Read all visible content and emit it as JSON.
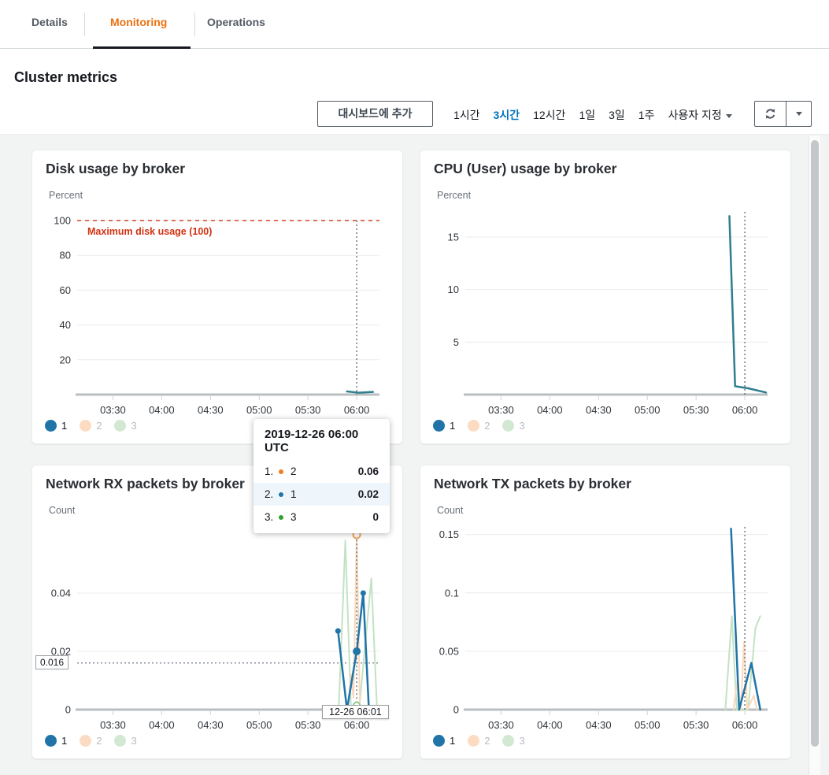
{
  "tabs": {
    "items": [
      {
        "label": "Details",
        "active": false
      },
      {
        "label": "Monitoring",
        "active": true
      },
      {
        "label": "Operations",
        "active": false
      }
    ]
  },
  "page": {
    "title": "Cluster metrics"
  },
  "toolbar": {
    "add_button": "대시보드에 추가",
    "ranges": [
      {
        "label": "1시간",
        "active": false
      },
      {
        "label": "3시간",
        "active": true
      },
      {
        "label": "12시간",
        "active": false
      },
      {
        "label": "1일",
        "active": false
      },
      {
        "label": "3일",
        "active": false
      },
      {
        "label": "1주",
        "active": false
      },
      {
        "label": "사용자 지정",
        "active": false,
        "dropdown": true
      }
    ],
    "refresh_icon": "refresh-icon",
    "refresh_dropdown_icon": "chevron-down-icon"
  },
  "colors": {
    "accent_orange": "#ec7211",
    "link_blue": "#0073bb",
    "alarm_red": "#d13212",
    "series_blue": "#2074a8",
    "series_teal": "#2e7e8f",
    "series_orange_dim": "#f8d9bd",
    "series_green_dim": "#c3e2c3",
    "content_bg": "#f2f3f3"
  },
  "tooltip": {
    "title": "2019-12-26 06:00 UTC",
    "rows": [
      {
        "rank": "1.",
        "label": "2",
        "value": "0.06",
        "color": "#ef7e1a",
        "filled": false,
        "highlight": false
      },
      {
        "rank": "2.",
        "label": "1",
        "value": "0.02",
        "color": "#2074a8",
        "filled": true,
        "highlight": true
      },
      {
        "rank": "3.",
        "label": "3",
        "value": "0",
        "color": "#2fa12f",
        "filled": false,
        "highlight": false
      }
    ]
  },
  "cursor_tooltip": "12-26 06:01",
  "chart_data": [
    {
      "type": "line",
      "title": "Disk usage by broker",
      "ylabel": "Percent",
      "ylim": [
        0,
        105
      ],
      "x_domain": [
        188,
        374
      ],
      "xticks": [
        {
          "t": 210,
          "label": "03:30"
        },
        {
          "t": 240,
          "label": "04:00"
        },
        {
          "t": 270,
          "label": "04:30"
        },
        {
          "t": 300,
          "label": "05:00"
        },
        {
          "t": 330,
          "label": "05:30"
        },
        {
          "t": 360,
          "label": "06:00"
        }
      ],
      "yticks": [
        {
          "value": 20,
          "label": "20"
        },
        {
          "value": 40,
          "label": "40"
        },
        {
          "value": 60,
          "label": "60"
        },
        {
          "value": 80,
          "label": "80"
        },
        {
          "value": 100,
          "label": "100"
        }
      ],
      "hlines": [
        {
          "value": 100,
          "color": "#d13212",
          "dash": "5,5",
          "width": 1.3,
          "label": "Maximum disk usage (100)"
        }
      ],
      "cursor": {
        "t": 360,
        "y_top": 100
      },
      "series": [
        {
          "name": "1",
          "color": "#2e7e8f",
          "width": 2.5,
          "values": [
            [
              354,
              1.8
            ],
            [
              361,
              1.1
            ],
            [
              370,
              1.5
            ]
          ]
        }
      ],
      "legend": [
        {
          "label": "1",
          "color": "#2074a8",
          "text_color": "#16191f"
        },
        {
          "label": "2",
          "color": "#fbdcc3",
          "text_color": "#b7bcc1"
        },
        {
          "label": "3",
          "color": "#d2e8d2",
          "text_color": "#b7bcc1"
        }
      ]
    },
    {
      "type": "line",
      "title": "CPU (User) usage by broker",
      "ylabel": "Percent",
      "ylim": [
        0,
        17.4
      ],
      "x_domain": [
        188,
        374
      ],
      "xticks": [
        {
          "t": 210,
          "label": "03:30"
        },
        {
          "t": 240,
          "label": "04:00"
        },
        {
          "t": 270,
          "label": "04:30"
        },
        {
          "t": 300,
          "label": "05:00"
        },
        {
          "t": 330,
          "label": "05:30"
        },
        {
          "t": 360,
          "label": "06:00"
        }
      ],
      "yticks": [
        {
          "value": 5,
          "label": "5"
        },
        {
          "value": 10,
          "label": "10"
        },
        {
          "value": 15,
          "label": "15"
        }
      ],
      "cursor": {
        "t": 360
      },
      "series": [
        {
          "name": "1",
          "color": "#2e7e8f",
          "width": 2.5,
          "values": [
            [
              350.5,
              17.0
            ],
            [
              354,
              0.8
            ],
            [
              362,
              0.6
            ],
            [
              373,
              0.2
            ]
          ]
        }
      ],
      "legend": [
        {
          "label": "1",
          "color": "#2074a8",
          "text_color": "#16191f"
        },
        {
          "label": "2",
          "color": "#fbdcc3",
          "text_color": "#b7bcc1"
        },
        {
          "label": "3",
          "color": "#d2e8d2",
          "text_color": "#b7bcc1"
        }
      ]
    },
    {
      "type": "line",
      "title": "Network RX packets by broker",
      "ylabel": "Count",
      "ylim": [
        0,
        0.0627
      ],
      "x_domain": [
        188,
        374
      ],
      "xticks": [
        {
          "t": 210,
          "label": "03:30"
        },
        {
          "t": 240,
          "label": "04:00"
        },
        {
          "t": 270,
          "label": "04:30"
        },
        {
          "t": 300,
          "label": "05:00"
        },
        {
          "t": 330,
          "label": "05:30"
        },
        {
          "t": 360,
          "label": "06:00"
        }
      ],
      "yticks": [
        {
          "value": 0,
          "label": "0"
        },
        {
          "value": 0.02,
          "label": "0.02"
        },
        {
          "value": 0.04,
          "label": "0.04"
        }
      ],
      "hlines": [
        {
          "value": 0.016,
          "color": "#5f6b7a",
          "dash": "2,3",
          "width": 1.2
        }
      ],
      "threshold_label": "0.016",
      "cursor": {
        "t": 360,
        "y_top": 0.061
      },
      "series": [
        {
          "name": "3",
          "color": "#c3e2c3",
          "width": 2,
          "values": [
            [
              346,
              0
            ],
            [
              349,
              0.001
            ],
            [
              353,
              0.058
            ],
            [
              356.5,
              0
            ],
            [
              359.5,
              0.002
            ],
            [
              361.5,
              0
            ],
            [
              369,
              0.045
            ],
            [
              372.5,
              0
            ]
          ]
        },
        {
          "name": "2",
          "color": "#f8d9bd",
          "width": 2,
          "values": [
            [
              350,
              0
            ],
            [
              354.5,
              0
            ],
            [
              356.5,
              0.012
            ],
            [
              358,
              0.004
            ],
            [
              360,
              0.06
            ],
            [
              362,
              0
            ],
            [
              368,
              0
            ]
          ]
        },
        {
          "name": "1",
          "color": "#2074a8",
          "width": 2.5,
          "dot_radius": 3.5,
          "values": [
            [
              348.5,
              0.027
            ],
            [
              354,
              0
            ],
            [
              360,
              0.02
            ],
            [
              364,
              0.04
            ],
            [
              367.5,
              0
            ],
            [
              370,
              0
            ]
          ]
        }
      ],
      "markers": [
        {
          "t": 360,
          "v": 0.06,
          "r": 4.5,
          "color": "#efa45e",
          "filled": false
        },
        {
          "t": 360,
          "v": 0.02,
          "r": 5,
          "color": "#2074a8",
          "filled": true
        },
        {
          "t": 360,
          "v": 0.0015,
          "r": 4,
          "color": "#8fcf8f",
          "filled": false
        }
      ],
      "legend": [
        {
          "label": "1",
          "color": "#2074a8",
          "text_color": "#16191f"
        },
        {
          "label": "2",
          "color": "#fbdcc3",
          "text_color": "#b7bcc1"
        },
        {
          "label": "3",
          "color": "#d2e8d2",
          "text_color": "#b7bcc1"
        }
      ]
    },
    {
      "type": "line",
      "title": "Network TX packets by broker",
      "ylabel": "Count",
      "ylim": [
        0,
        0.1565
      ],
      "x_domain": [
        188,
        374
      ],
      "xticks": [
        {
          "t": 210,
          "label": "03:30"
        },
        {
          "t": 240,
          "label": "04:00"
        },
        {
          "t": 270,
          "label": "04:30"
        },
        {
          "t": 300,
          "label": "05:00"
        },
        {
          "t": 330,
          "label": "05:30"
        },
        {
          "t": 360,
          "label": "06:00"
        }
      ],
      "yticks": [
        {
          "value": 0,
          "label": "0"
        },
        {
          "value": 0.05,
          "label": "0.05"
        },
        {
          "value": 0.1,
          "label": "0.1"
        },
        {
          "value": 0.15,
          "label": "0.15"
        }
      ],
      "cursor": {
        "t": 360
      },
      "series": [
        {
          "name": "3",
          "color": "#c3e2c3",
          "width": 2,
          "values": [
            [
              348,
              0
            ],
            [
              352,
              0.08
            ],
            [
              355,
              0
            ],
            [
              362,
              0
            ],
            [
              366.5,
              0.07
            ],
            [
              369.5,
              0.08
            ]
          ]
        },
        {
          "name": "2",
          "color": "#f8d9bd",
          "width": 2,
          "values": [
            [
              353,
              0
            ],
            [
              355.5,
              0.027
            ],
            [
              357.5,
              0
            ],
            [
              359.5,
              0.058
            ],
            [
              361.5,
              0
            ],
            [
              365.5,
              0.012
            ],
            [
              367.5,
              0
            ]
          ]
        },
        {
          "name": "1",
          "color": "#2074a8",
          "width": 2.5,
          "values": [
            [
              351.5,
              0.155
            ],
            [
              356.5,
              0
            ],
            [
              364,
              0.04
            ],
            [
              369.5,
              0
            ]
          ]
        }
      ],
      "legend": [
        {
          "label": "1",
          "color": "#2074a8",
          "text_color": "#16191f"
        },
        {
          "label": "2",
          "color": "#fbdcc3",
          "text_color": "#b7bcc1"
        },
        {
          "label": "3",
          "color": "#d2e8d2",
          "text_color": "#b7bcc1"
        }
      ]
    }
  ]
}
